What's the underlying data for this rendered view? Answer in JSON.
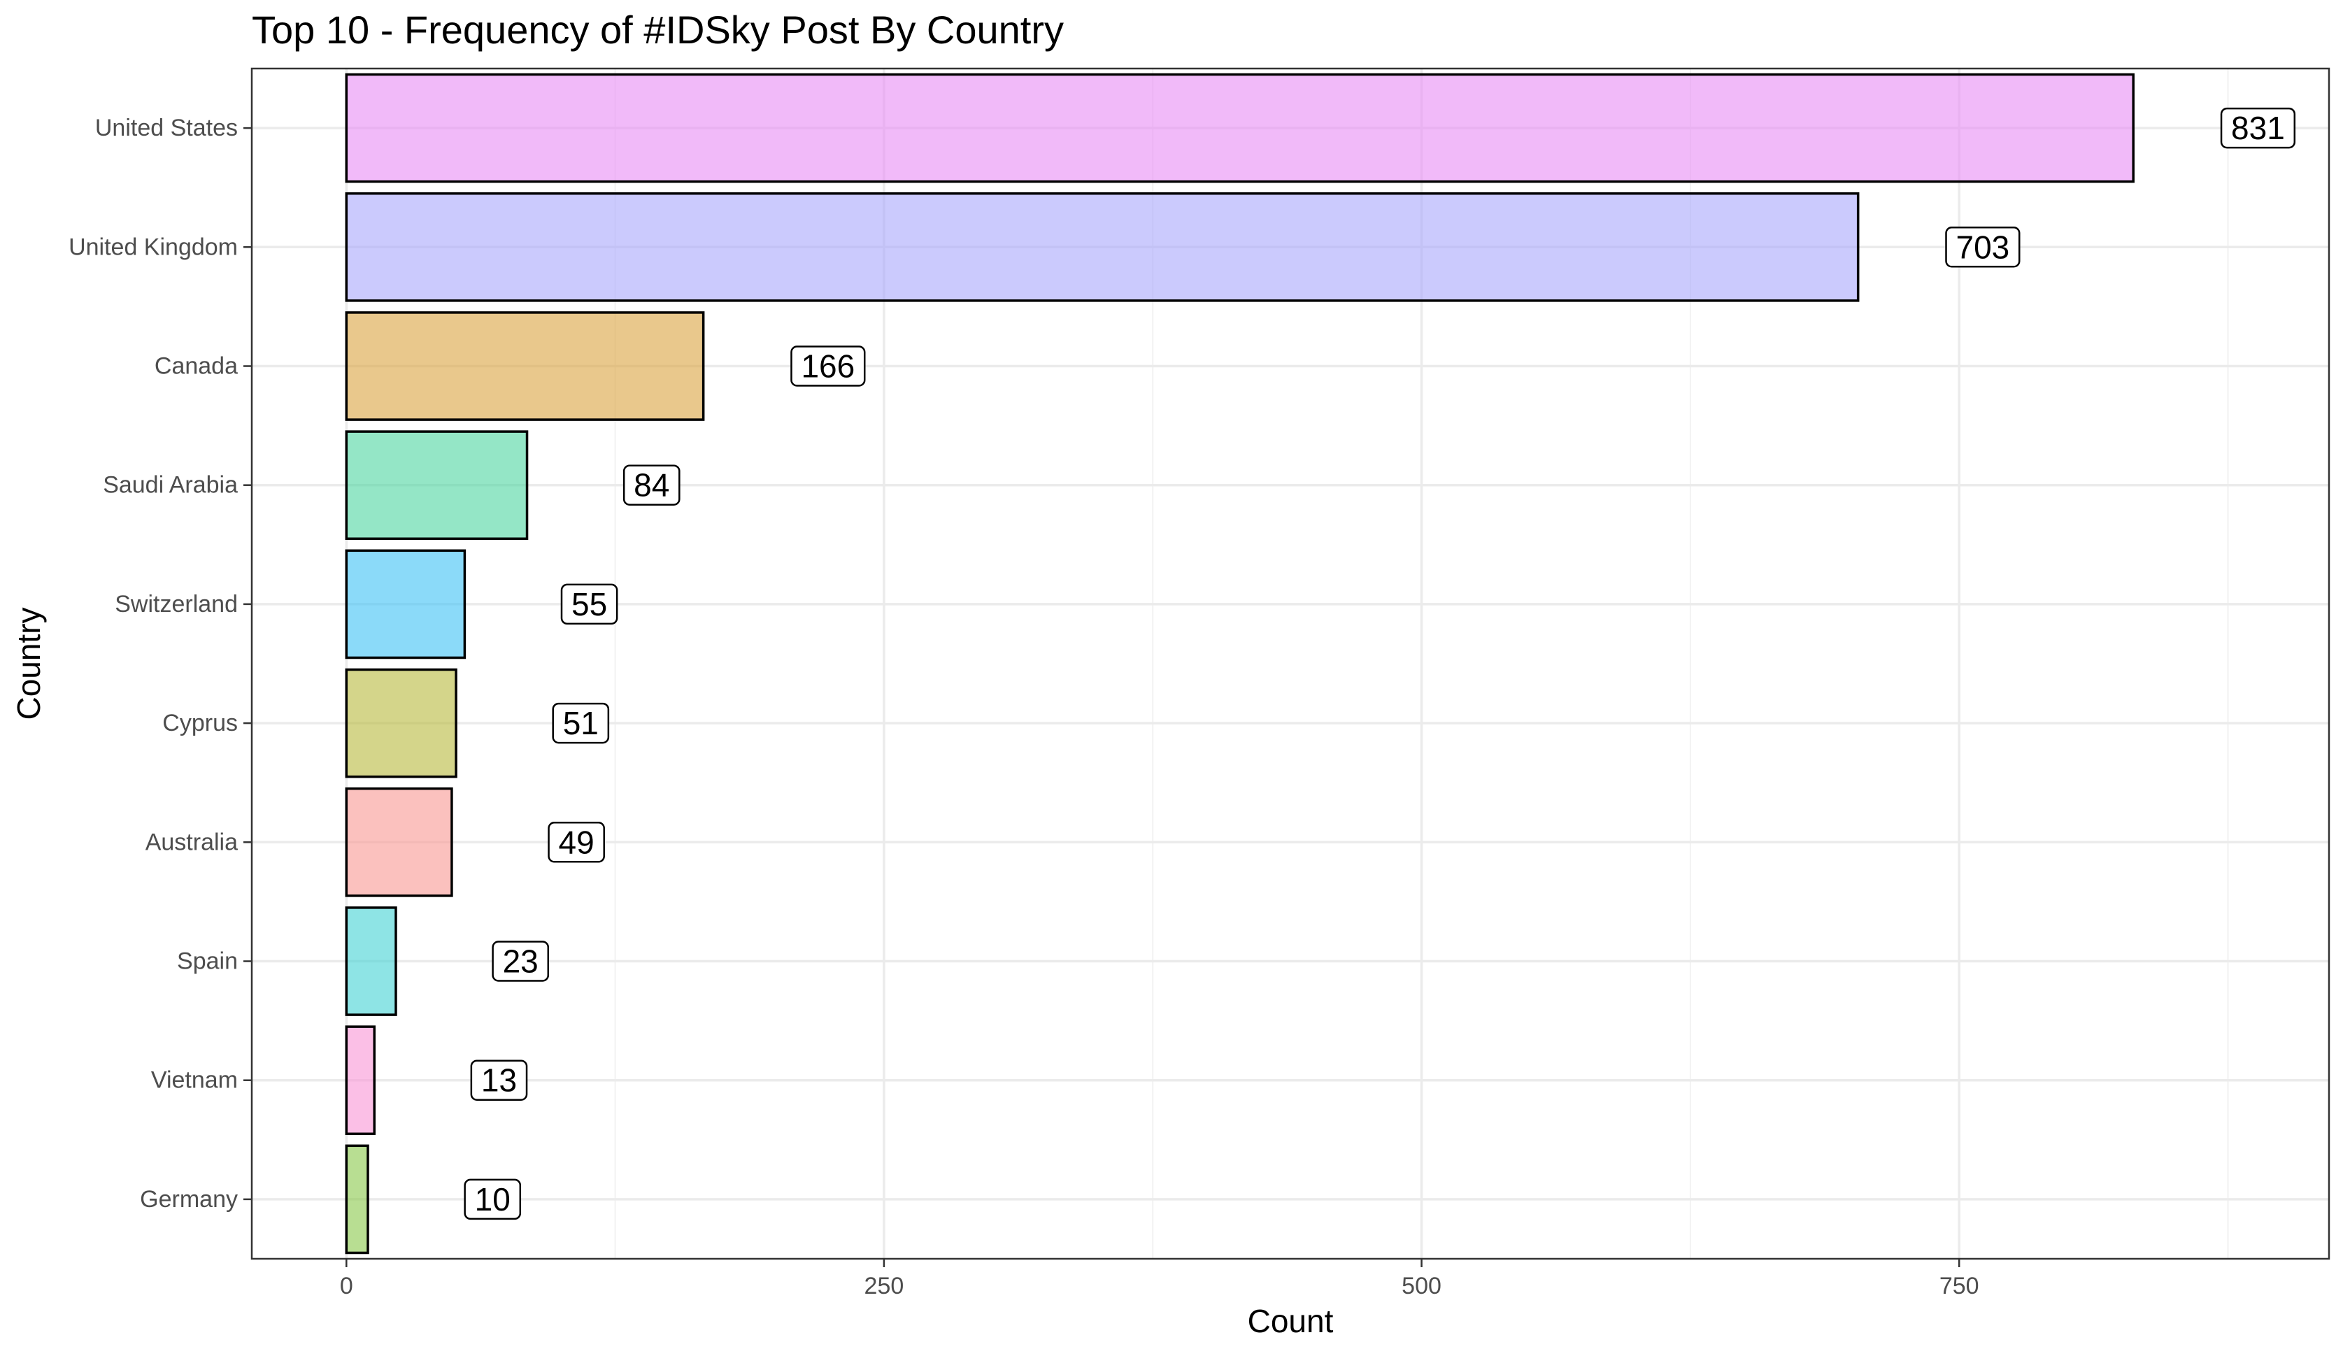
{
  "chart_data": {
    "type": "bar",
    "orientation": "horizontal",
    "title": "Top 10 - Frequency of #IDSky Post By Country",
    "xlabel": "Count",
    "ylabel": "Country",
    "categories": [
      "United States",
      "United Kingdom",
      "Canada",
      "Saudi Arabia",
      "Switzerland",
      "Cyprus",
      "Australia",
      "Spain",
      "Vietnam",
      "Germany"
    ],
    "values": [
      831,
      703,
      166,
      84,
      55,
      51,
      49,
      23,
      13,
      10
    ],
    "colors": [
      "#e88cf5",
      "#a9a6fb",
      "#dba440",
      "#4cd5a0",
      "#3ec2f5",
      "#b8b93c",
      "#f89892",
      "#43d2d3",
      "#f994d6",
      "#88c84a"
    ],
    "xlim": [
      -44,
      922
    ],
    "xticks": [
      0,
      250,
      500,
      750
    ],
    "xtick_labels": [
      "0",
      "250",
      "500",
      "750"
    ],
    "grid": true,
    "legend": "none",
    "data_labels": true
  }
}
